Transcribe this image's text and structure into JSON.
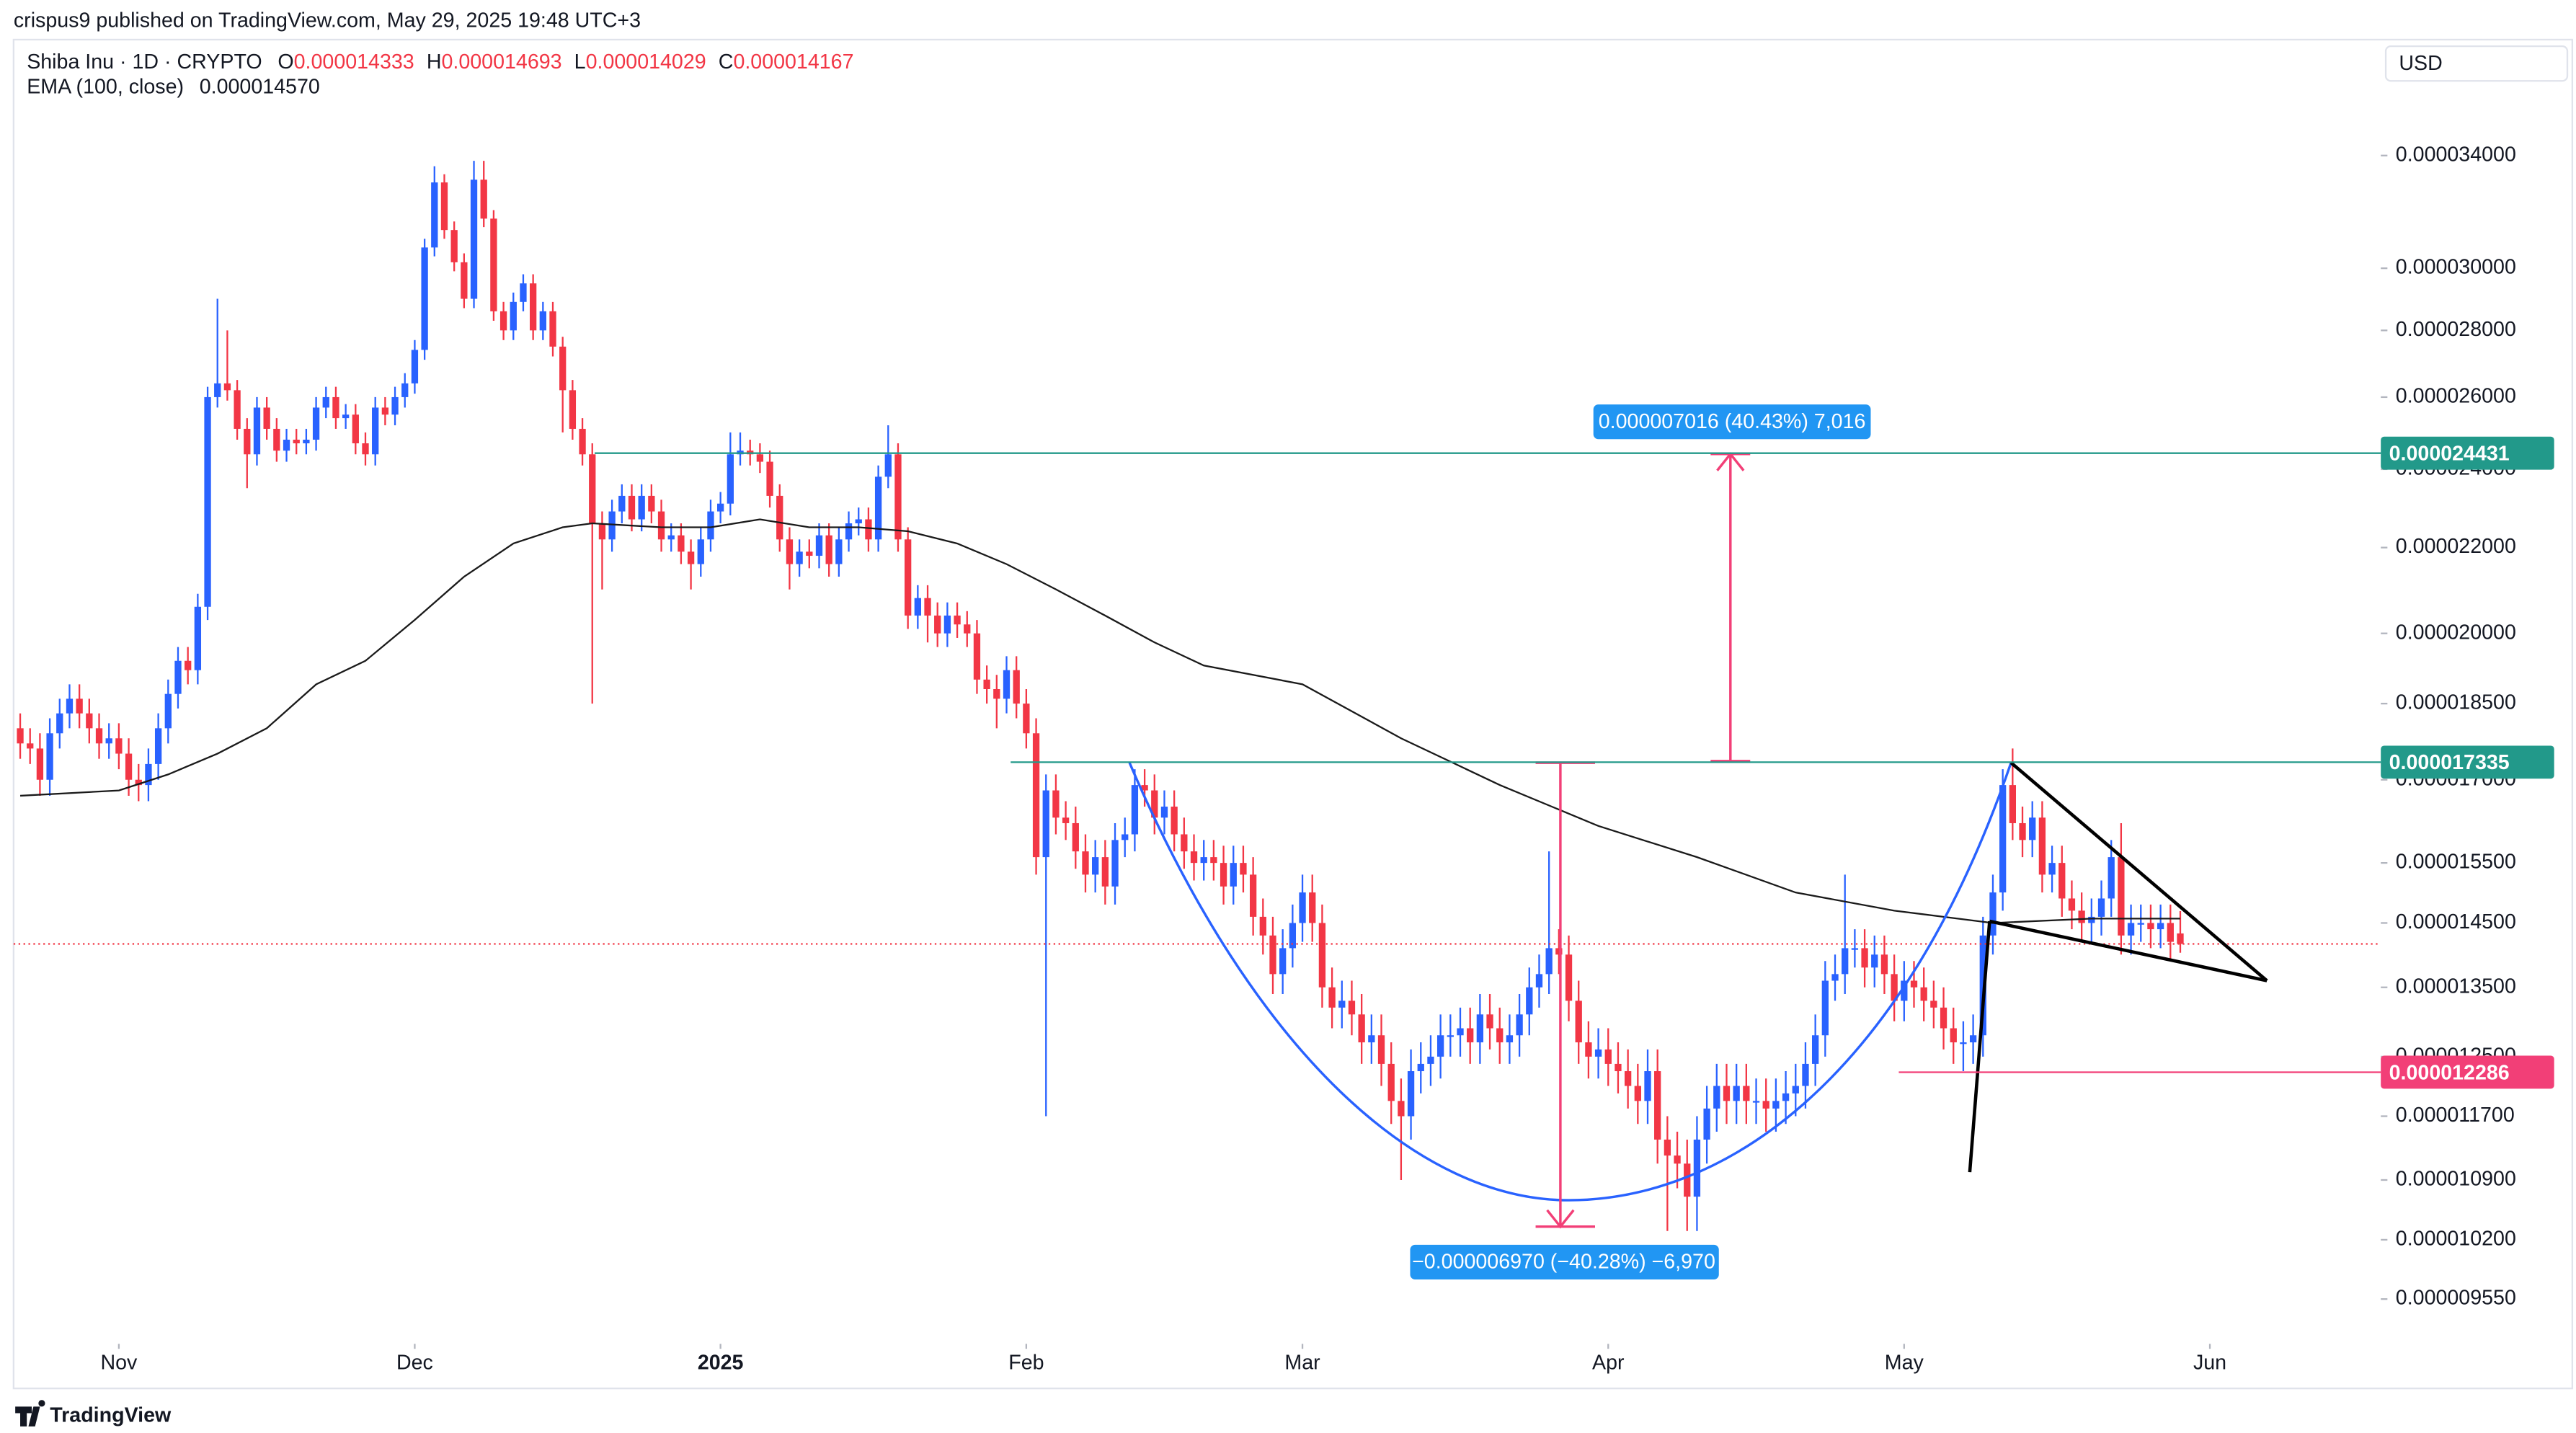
{
  "chart_data": {
    "type": "candlestick",
    "publisher": "crispus9 published on TradingView.com, May 29, 2025 19:48 UTC+3",
    "title": "Shiba Inu · 1D · CRYPTO",
    "ohlc_legend": [
      {
        "key": "O",
        "text": "0.000014333"
      },
      {
        "key": "H",
        "text": "0.000014693"
      },
      {
        "key": "L",
        "text": "0.000014029"
      },
      {
        "key": "C",
        "text": "0.000014167"
      }
    ],
    "indicator": {
      "name": "EMA (100, close)",
      "text": "0.000014570"
    },
    "currency": "USD",
    "brand": "TradingView",
    "up_color": "#2962ff",
    "down_color": "#f23645",
    "log_scale": true,
    "ylim": [
      9.12e-06,
      3.86e-05
    ],
    "yticks": [
      {
        "value": 3.4e-05,
        "label": "0.000034000"
      },
      {
        "value": 3e-05,
        "label": "0.000030000"
      },
      {
        "value": 2.8e-05,
        "label": "0.000028000"
      },
      {
        "value": 2.6e-05,
        "label": "0.000026000"
      },
      {
        "value": 2.4e-05,
        "label": "0.000024000"
      },
      {
        "value": 2.2e-05,
        "label": "0.000022000"
      },
      {
        "value": 2e-05,
        "label": "0.000020000"
      },
      {
        "value": 1.85e-05,
        "label": "0.000018500"
      },
      {
        "value": 1.7e-05,
        "label": "0.000017000"
      },
      {
        "value": 1.55e-05,
        "label": "0.000015500"
      },
      {
        "value": 1.45e-05,
        "label": "0.000014500"
      },
      {
        "value": 1.35e-05,
        "label": "0.000013500"
      },
      {
        "value": 1.25e-05,
        "label": "0.000012500"
      },
      {
        "value": 1.17e-05,
        "label": "0.000011700"
      },
      {
        "value": 1.09e-05,
        "label": "0.000010900"
      },
      {
        "value": 1.02e-05,
        "label": "0.000010200"
      },
      {
        "value": 9.55e-06,
        "label": "0.000009550"
      }
    ],
    "xlim": [
      -0.67,
      239.33
    ],
    "xticks": [
      {
        "value": 10,
        "label": "Nov"
      },
      {
        "value": 40,
        "label": "Dec"
      },
      {
        "value": 71,
        "label": "2025"
      },
      {
        "value": 102,
        "label": "Feb"
      },
      {
        "value": 130,
        "label": "Mar"
      },
      {
        "value": 161,
        "label": "Apr"
      },
      {
        "value": 191,
        "label": "May"
      },
      {
        "value": 222,
        "label": "Jun"
      }
    ],
    "open": [
      1.8e-05,
      1.77e-05,
      1.76e-05,
      1.7e-05,
      1.79e-05,
      1.83e-05,
      1.86e-05,
      1.83e-05,
      1.8e-05,
      1.77e-05,
      1.78e-05,
      1.75e-05,
      1.7e-05,
      1.69e-05,
      1.73e-05,
      1.8e-05,
      1.87e-05,
      1.94e-05,
      1.92e-05,
      2.06e-05,
      2.6e-05,
      2.64e-05,
      2.62e-05,
      2.51e-05,
      2.44e-05,
      2.57e-05,
      2.51e-05,
      2.45e-05,
      2.48e-05,
      2.47e-05,
      2.48e-05,
      2.57e-05,
      2.6e-05,
      2.54e-05,
      2.55e-05,
      2.47e-05,
      2.44e-05,
      2.57e-05,
      2.55e-05,
      2.6e-05,
      2.64e-05,
      2.74e-05,
      3.07e-05,
      3.3e-05,
      3.13e-05,
      3.02e-05,
      2.9e-05,
      3.31e-05,
      3.17e-05,
      2.86e-05,
      2.8e-05,
      2.89e-05,
      2.95e-05,
      2.8e-05,
      2.86e-05,
      2.75e-05,
      2.62e-05,
      2.51e-05,
      2.44e-05,
      2.26e-05,
      2.22e-05,
      2.29e-05,
      2.33e-05,
      2.27e-05,
      2.33e-05,
      2.29e-05,
      2.22e-05,
      2.23e-05,
      2.19e-05,
      2.16e-05,
      2.22e-05,
      2.29e-05,
      2.31e-05,
      2.44e-05,
      2.45e-05,
      2.44e-05,
      2.42e-05,
      2.33e-05,
      2.22e-05,
      2.16e-05,
      2.19e-05,
      2.18e-05,
      2.23e-05,
      2.16e-05,
      2.22e-05,
      2.26e-05,
      2.27e-05,
      2.22e-05,
      2.38e-05,
      2.44e-05,
      2.22e-05,
      2.04e-05,
      2.08e-05,
      2.04e-05,
      2e-05,
      2.04e-05,
      2.02e-05,
      2e-05,
      1.9e-05,
      1.88e-05,
      1.86e-05,
      1.92e-05,
      1.85e-05,
      1.79e-05,
      1.56e-05,
      1.68e-05,
      1.63e-05,
      1.62e-05,
      1.57e-05,
      1.53e-05,
      1.56e-05,
      1.51e-05,
      1.59e-05,
      1.6e-05,
      1.69e-05,
      1.68e-05,
      1.63e-05,
      1.65e-05,
      1.6e-05,
      1.57e-05,
      1.55e-05,
      1.56e-05,
      1.55e-05,
      1.51e-05,
      1.55e-05,
      1.53e-05,
      1.46e-05,
      1.43e-05,
      1.37e-05,
      1.41e-05,
      1.45e-05,
      1.5e-05,
      1.45e-05,
      1.35e-05,
      1.32e-05,
      1.33e-05,
      1.31e-05,
      1.27e-05,
      1.28e-05,
      1.24e-05,
      1.19e-05,
      1.17e-05,
      1.23e-05,
      1.24e-05,
      1.25e-05,
      1.28e-05,
      1.28e-05,
      1.29e-05,
      1.27e-05,
      1.31e-05,
      1.29e-05,
      1.27e-05,
      1.28e-05,
      1.31e-05,
      1.35e-05,
      1.37e-05,
      1.41e-05,
      1.4e-05,
      1.33e-05,
      1.27e-05,
      1.25e-05,
      1.26e-05,
      1.24e-05,
      1.23e-05,
      1.21e-05,
      1.19e-05,
      1.23e-05,
      1.14e-05,
      1.12e-05,
      1.11e-05,
      1.07e-05,
      1.14e-05,
      1.18e-05,
      1.21e-05,
      1.19e-05,
      1.21e-05,
      1.19e-05,
      1.19e-05,
      1.18e-05,
      1.19e-05,
      1.2e-05,
      1.21e-05,
      1.24e-05,
      1.28e-05,
      1.36e-05,
      1.37e-05,
      1.41e-05,
      1.41e-05,
      1.38e-05,
      1.4e-05,
      1.37e-05,
      1.33e-05,
      1.36e-05,
      1.35e-05,
      1.33e-05,
      1.32e-05,
      1.29e-05,
      1.27e-05,
      1.27e-05,
      1.28e-05,
      1.43e-05,
      1.5e-05,
      1.69e-05,
      1.62e-05,
      1.59e-05,
      1.63e-05,
      1.53e-05,
      1.55e-05,
      1.49e-05,
      1.47e-05,
      1.45e-05,
      1.46e-05,
      1.49e-05,
      1.56e-05,
      1.43e-05,
      1.45e-05,
      1.45e-05,
      1.44e-05,
      1.45e-05,
      1.4333e-05
    ],
    "high": [
      1.83e-05,
      1.8e-05,
      1.79e-05,
      1.82e-05,
      1.86e-05,
      1.89e-05,
      1.89e-05,
      1.86e-05,
      1.83e-05,
      1.81e-05,
      1.81e-05,
      1.78e-05,
      1.73e-05,
      1.76e-05,
      1.83e-05,
      1.9e-05,
      1.97e-05,
      1.97e-05,
      2.09e-05,
      2.63e-05,
      2.9e-05,
      2.8e-05,
      2.65e-05,
      2.54e-05,
      2.6e-05,
      2.6e-05,
      2.54e-05,
      2.51e-05,
      2.51e-05,
      2.51e-05,
      2.6e-05,
      2.63e-05,
      2.63e-05,
      2.58e-05,
      2.58e-05,
      2.5e-05,
      2.6e-05,
      2.6e-05,
      2.63e-05,
      2.67e-05,
      2.77e-05,
      3.1e-05,
      3.36e-05,
      3.33e-05,
      3.16e-05,
      3.05e-05,
      3.38e-05,
      3.38e-05,
      3.2e-05,
      2.89e-05,
      2.92e-05,
      2.98e-05,
      2.98e-05,
      2.89e-05,
      2.89e-05,
      2.78e-05,
      2.65e-05,
      2.54e-05,
      2.47e-05,
      2.29e-05,
      2.32e-05,
      2.36e-05,
      2.36e-05,
      2.36e-05,
      2.36e-05,
      2.32e-05,
      2.26e-05,
      2.26e-05,
      2.22e-05,
      2.25e-05,
      2.32e-05,
      2.34e-05,
      2.5e-05,
      2.5e-05,
      2.48e-05,
      2.47e-05,
      2.45e-05,
      2.36e-05,
      2.25e-05,
      2.22e-05,
      2.22e-05,
      2.26e-05,
      2.26e-05,
      2.25e-05,
      2.29e-05,
      2.3e-05,
      2.3e-05,
      2.41e-05,
      2.52e-05,
      2.47e-05,
      2.25e-05,
      2.11e-05,
      2.11e-05,
      2.07e-05,
      2.07e-05,
      2.07e-05,
      2.05e-05,
      2.03e-05,
      1.93e-05,
      1.91e-05,
      1.95e-05,
      1.95e-05,
      1.88e-05,
      1.82e-05,
      1.71e-05,
      1.71e-05,
      1.66e-05,
      1.65e-05,
      1.6e-05,
      1.59e-05,
      1.59e-05,
      1.62e-05,
      1.63e-05,
      1.72e-05,
      1.72e-05,
      1.71e-05,
      1.68e-05,
      1.68e-05,
      1.63e-05,
      1.6e-05,
      1.59e-05,
      1.59e-05,
      1.58e-05,
      1.58e-05,
      1.58e-05,
      1.56e-05,
      1.49e-05,
      1.46e-05,
      1.44e-05,
      1.48e-05,
      1.53e-05,
      1.53e-05,
      1.48e-05,
      1.38e-05,
      1.36e-05,
      1.36e-05,
      1.34e-05,
      1.31e-05,
      1.31e-05,
      1.27e-05,
      1.22e-05,
      1.26e-05,
      1.27e-05,
      1.28e-05,
      1.31e-05,
      1.31e-05,
      1.32e-05,
      1.32e-05,
      1.34e-05,
      1.34e-05,
      1.32e-05,
      1.31e-05,
      1.34e-05,
      1.38e-05,
      1.4e-05,
      1.57e-05,
      1.44e-05,
      1.43e-05,
      1.36e-05,
      1.3e-05,
      1.29e-05,
      1.29e-05,
      1.27e-05,
      1.26e-05,
      1.24e-05,
      1.26e-05,
      1.26e-05,
      1.17e-05,
      1.15e-05,
      1.14e-05,
      1.17e-05,
      1.21e-05,
      1.24e-05,
      1.24e-05,
      1.24e-05,
      1.24e-05,
      1.22e-05,
      1.22e-05,
      1.22e-05,
      1.23e-05,
      1.24e-05,
      1.27e-05,
      1.31e-05,
      1.39e-05,
      1.4e-05,
      1.53e-05,
      1.44e-05,
      1.44e-05,
      1.43e-05,
      1.43e-05,
      1.4e-05,
      1.39e-05,
      1.39e-05,
      1.38e-05,
      1.36e-05,
      1.35e-05,
      1.32e-05,
      1.3e-05,
      1.31e-05,
      1.46e-05,
      1.53e-05,
      1.72e-05,
      1.76e-05,
      1.65e-05,
      1.66e-05,
      1.66e-05,
      1.58e-05,
      1.58e-05,
      1.52e-05,
      1.5e-05,
      1.49e-05,
      1.52e-05,
      1.59e-05,
      1.62e-05,
      1.48e-05,
      1.48e-05,
      1.48e-05,
      1.48e-05,
      1.48e-05,
      1.4693e-05
    ],
    "low": [
      1.74e-05,
      1.73e-05,
      1.67e-05,
      1.67e-05,
      1.76e-05,
      1.8e-05,
      1.8e-05,
      1.77e-05,
      1.74e-05,
      1.74e-05,
      1.72e-05,
      1.67e-05,
      1.66e-05,
      1.66e-05,
      1.7e-05,
      1.77e-05,
      1.84e-05,
      1.89e-05,
      1.89e-05,
      2.03e-05,
      2.57e-05,
      2.59e-05,
      2.48e-05,
      2.35e-05,
      2.41e-05,
      2.48e-05,
      2.42e-05,
      2.42e-05,
      2.44e-05,
      2.44e-05,
      2.45e-05,
      2.54e-05,
      2.51e-05,
      2.51e-05,
      2.44e-05,
      2.41e-05,
      2.41e-05,
      2.52e-05,
      2.52e-05,
      2.57e-05,
      2.61e-05,
      2.71e-05,
      3.04e-05,
      3.1e-05,
      2.99e-05,
      2.87e-05,
      2.87e-05,
      3.14e-05,
      2.83e-05,
      2.77e-05,
      2.77e-05,
      2.86e-05,
      2.77e-05,
      2.77e-05,
      2.72e-05,
      2.5e-05,
      2.48e-05,
      2.41e-05,
      1.85e-05,
      2.1e-05,
      2.19e-05,
      2.26e-05,
      2.24e-05,
      2.24e-05,
      2.26e-05,
      2.19e-05,
      2.19e-05,
      2.16e-05,
      2.1e-05,
      2.13e-05,
      2.19e-05,
      2.26e-05,
      2.28e-05,
      2.41e-05,
      2.41e-05,
      2.39e-05,
      2.3e-05,
      2.19e-05,
      2.1e-05,
      2.13e-05,
      2.15e-05,
      2.15e-05,
      2.13e-05,
      2.13e-05,
      2.19e-05,
      2.23e-05,
      2.19e-05,
      2.19e-05,
      2.35e-05,
      2.19e-05,
      2.01e-05,
      2.01e-05,
      1.98e-05,
      1.97e-05,
      1.97e-05,
      1.99e-05,
      1.97e-05,
      1.87e-05,
      1.85e-05,
      1.8e-05,
      1.83e-05,
      1.82e-05,
      1.76e-05,
      1.53e-05,
      1.17e-05,
      1.6e-05,
      1.59e-05,
      1.54e-05,
      1.5e-05,
      1.5e-05,
      1.48e-05,
      1.48e-05,
      1.56e-05,
      1.57e-05,
      1.65e-05,
      1.6e-05,
      1.6e-05,
      1.57e-05,
      1.54e-05,
      1.52e-05,
      1.52e-05,
      1.52e-05,
      1.48e-05,
      1.48e-05,
      1.5e-05,
      1.43e-05,
      1.4e-05,
      1.34e-05,
      1.34e-05,
      1.38e-05,
      1.42e-05,
      1.42e-05,
      1.32e-05,
      1.29e-05,
      1.29e-05,
      1.28e-05,
      1.24e-05,
      1.24e-05,
      1.21e-05,
      1.16e-05,
      1.09e-05,
      1.14e-05,
      1.2e-05,
      1.21e-05,
      1.22e-05,
      1.25e-05,
      1.25e-05,
      1.24e-05,
      1.24e-05,
      1.26e-05,
      1.24e-05,
      1.24e-05,
      1.25e-05,
      1.28e-05,
      1.32e-05,
      1.34e-05,
      1.37e-05,
      1.3e-05,
      1.24e-05,
      1.22e-05,
      1.22e-05,
      1.21e-05,
      1.2e-05,
      1.18e-05,
      1.16e-05,
      1.16e-05,
      1.11e-05,
      1.03e-05,
      1.08e-05,
      1.03e-05,
      1.03e-05,
      1.11e-05,
      1.15e-05,
      1.16e-05,
      1.16e-05,
      1.16e-05,
      1.16e-05,
      1.15e-05,
      1.15e-05,
      1.16e-05,
      1.17e-05,
      1.18e-05,
      1.21e-05,
      1.25e-05,
      1.33e-05,
      1.34e-05,
      1.38e-05,
      1.35e-05,
      1.35e-05,
      1.34e-05,
      1.3e-05,
      1.3e-05,
      1.32e-05,
      1.3e-05,
      1.29e-05,
      1.26e-05,
      1.24e-05,
      1.23e-05,
      1.24e-05,
      1.25e-05,
      1.4e-05,
      1.47e-05,
      1.59e-05,
      1.56e-05,
      1.56e-05,
      1.5e-05,
      1.5e-05,
      1.46e-05,
      1.44e-05,
      1.42e-05,
      1.42e-05,
      1.43e-05,
      1.46e-05,
      1.4e-05,
      1.4e-05,
      1.42e-05,
      1.41e-05,
      1.41e-05,
      1.39e-05,
      1.4029e-05
    ],
    "close": [
      1.77e-05,
      1.76e-05,
      1.7e-05,
      1.79e-05,
      1.83e-05,
      1.86e-05,
      1.83e-05,
      1.8e-05,
      1.77e-05,
      1.78e-05,
      1.75e-05,
      1.7e-05,
      1.69e-05,
      1.73e-05,
      1.8e-05,
      1.87e-05,
      1.94e-05,
      1.92e-05,
      2.06e-05,
      2.6e-05,
      2.64e-05,
      2.62e-05,
      2.51e-05,
      2.44e-05,
      2.57e-05,
      2.51e-05,
      2.45e-05,
      2.48e-05,
      2.47e-05,
      2.48e-05,
      2.57e-05,
      2.6e-05,
      2.54e-05,
      2.55e-05,
      2.47e-05,
      2.44e-05,
      2.57e-05,
      2.55e-05,
      2.6e-05,
      2.64e-05,
      2.74e-05,
      3.07e-05,
      3.3e-05,
      3.13e-05,
      3.02e-05,
      2.9e-05,
      3.31e-05,
      3.17e-05,
      2.86e-05,
      2.8e-05,
      2.89e-05,
      2.95e-05,
      2.8e-05,
      2.86e-05,
      2.75e-05,
      2.62e-05,
      2.51e-05,
      2.44e-05,
      2.26e-05,
      2.22e-05,
      2.29e-05,
      2.33e-05,
      2.27e-05,
      2.33e-05,
      2.29e-05,
      2.22e-05,
      2.23e-05,
      2.19e-05,
      2.16e-05,
      2.22e-05,
      2.29e-05,
      2.31e-05,
      2.44e-05,
      2.45e-05,
      2.44e-05,
      2.42e-05,
      2.33e-05,
      2.22e-05,
      2.16e-05,
      2.19e-05,
      2.18e-05,
      2.23e-05,
      2.16e-05,
      2.22e-05,
      2.26e-05,
      2.27e-05,
      2.22e-05,
      2.38e-05,
      2.44e-05,
      2.22e-05,
      2.04e-05,
      2.08e-05,
      2.04e-05,
      2e-05,
      2.04e-05,
      2.02e-05,
      2e-05,
      1.9e-05,
      1.88e-05,
      1.86e-05,
      1.92e-05,
      1.85e-05,
      1.79e-05,
      1.56e-05,
      1.68e-05,
      1.63e-05,
      1.62e-05,
      1.57e-05,
      1.53e-05,
      1.56e-05,
      1.51e-05,
      1.59e-05,
      1.6e-05,
      1.69e-05,
      1.68e-05,
      1.63e-05,
      1.65e-05,
      1.6e-05,
      1.57e-05,
      1.55e-05,
      1.56e-05,
      1.55e-05,
      1.51e-05,
      1.55e-05,
      1.53e-05,
      1.46e-05,
      1.43e-05,
      1.37e-05,
      1.41e-05,
      1.45e-05,
      1.5e-05,
      1.45e-05,
      1.35e-05,
      1.32e-05,
      1.33e-05,
      1.31e-05,
      1.27e-05,
      1.28e-05,
      1.24e-05,
      1.19e-05,
      1.17e-05,
      1.23e-05,
      1.24e-05,
      1.25e-05,
      1.28e-05,
      1.28e-05,
      1.29e-05,
      1.27e-05,
      1.31e-05,
      1.29e-05,
      1.27e-05,
      1.28e-05,
      1.31e-05,
      1.35e-05,
      1.37e-05,
      1.41e-05,
      1.4e-05,
      1.33e-05,
      1.27e-05,
      1.25e-05,
      1.26e-05,
      1.24e-05,
      1.23e-05,
      1.21e-05,
      1.19e-05,
      1.23e-05,
      1.14e-05,
      1.12e-05,
      1.11e-05,
      1.07e-05,
      1.14e-05,
      1.18e-05,
      1.21e-05,
      1.19e-05,
      1.21e-05,
      1.19e-05,
      1.19e-05,
      1.18e-05,
      1.19e-05,
      1.2e-05,
      1.21e-05,
      1.24e-05,
      1.28e-05,
      1.36e-05,
      1.37e-05,
      1.41e-05,
      1.41e-05,
      1.38e-05,
      1.4e-05,
      1.37e-05,
      1.33e-05,
      1.36e-05,
      1.35e-05,
      1.33e-05,
      1.32e-05,
      1.29e-05,
      1.27e-05,
      1.27e-05,
      1.28e-05,
      1.43e-05,
      1.5e-05,
      1.69e-05,
      1.62e-05,
      1.59e-05,
      1.63e-05,
      1.53e-05,
      1.55e-05,
      1.49e-05,
      1.47e-05,
      1.45e-05,
      1.46e-05,
      1.49e-05,
      1.56e-05,
      1.43e-05,
      1.45e-05,
      1.45e-05,
      1.44e-05,
      1.45e-05,
      1.42e-05,
      1.4167e-05
    ],
    "ema": {
      "color": "#1a1a1a",
      "x": [
        0,
        10,
        15,
        20,
        25,
        30,
        35,
        40,
        45,
        50,
        55,
        58,
        65,
        70,
        75,
        80,
        85,
        90,
        95,
        100,
        105,
        110,
        115,
        120,
        130,
        140,
        150,
        160,
        170,
        180,
        190,
        200,
        210,
        219
      ],
      "values": [
        1.67e-05,
        1.68e-05,
        1.71e-05,
        1.75e-05,
        1.8e-05,
        1.89e-05,
        1.94e-05,
        2.03e-05,
        2.13e-05,
        2.21e-05,
        2.25e-05,
        2.26e-05,
        2.25e-05,
        2.25e-05,
        2.27e-05,
        2.25e-05,
        2.25e-05,
        2.24e-05,
        2.21e-05,
        2.16e-05,
        2.1e-05,
        2.04e-05,
        1.98e-05,
        1.93e-05,
        1.89e-05,
        1.78e-05,
        1.69e-05,
        1.615e-05,
        1.56e-05,
        1.5e-05,
        1.47e-05,
        1.45e-05,
        1.457e-05,
        1.457e-05
      ]
    },
    "levels": [
      {
        "value": 2.4431e-05,
        "label": "0.000024431",
        "color": "#22998a"
      },
      {
        "value": 1.7335e-05,
        "label": "0.000017335",
        "color": "#22998a"
      },
      {
        "value": 1.2286e-05,
        "label": "0.000012286",
        "color": "#f23f77"
      }
    ],
    "annotations": [
      "0.000007016 (40.43%) 7,016",
      "−0.000006970 (−40.28%) −6,970"
    ]
  }
}
